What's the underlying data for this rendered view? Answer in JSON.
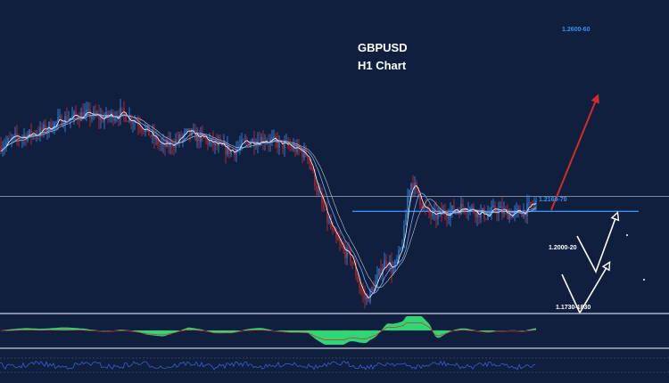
{
  "chart_data": {
    "type": "line",
    "title": "GBPUSD",
    "subtitle": "H1 Chart",
    "series": [
      {
        "price_path": [
          [
            0,
            1.2405
          ],
          [
            20,
            1.2435
          ],
          [
            45,
            1.2455
          ],
          [
            70,
            1.25
          ],
          [
            95,
            1.252
          ],
          [
            115,
            1.2505
          ],
          [
            135,
            1.2525
          ],
          [
            155,
            1.249
          ],
          [
            170,
            1.244
          ],
          [
            182,
            1.24
          ],
          [
            195,
            1.2415
          ],
          [
            210,
            1.245
          ],
          [
            228,
            1.243
          ],
          [
            245,
            1.24
          ],
          [
            260,
            1.2385
          ],
          [
            278,
            1.242
          ],
          [
            295,
            1.243
          ],
          [
            315,
            1.241
          ],
          [
            330,
            1.2395
          ],
          [
            345,
            1.237
          ],
          [
            355,
            1.225
          ],
          [
            365,
            1.215
          ],
          [
            375,
            1.207
          ],
          [
            385,
            1.202
          ],
          [
            392,
            1.2005
          ],
          [
            398,
            1.195
          ],
          [
            404,
            1.188
          ],
          [
            410,
            1.184
          ],
          [
            416,
            1.187
          ],
          [
            422,
            1.191
          ],
          [
            428,
            1.196
          ],
          [
            434,
            1.1995
          ],
          [
            440,
            1.1945
          ],
          [
            446,
            1.199
          ],
          [
            452,
            1.206
          ],
          [
            458,
            1.225
          ],
          [
            462,
            1.2275
          ],
          [
            468,
            1.223
          ],
          [
            476,
            1.217
          ],
          [
            486,
            1.2145
          ],
          [
            498,
            1.216
          ],
          [
            510,
            1.217
          ],
          [
            522,
            1.2185
          ],
          [
            534,
            1.2165
          ],
          [
            546,
            1.215
          ],
          [
            556,
            1.2175
          ],
          [
            566,
            1.216
          ],
          [
            576,
            1.2155
          ],
          [
            586,
            1.2165
          ],
          [
            594,
            1.218
          ],
          [
            601,
            1.2195
          ]
        ]
      }
    ],
    "levels": [
      {
        "label": "1.2600-60",
        "value": 1.263,
        "color": "#3b8ff0"
      },
      {
        "label": "1.2160-70",
        "value": 1.2165,
        "color": "#3b8ff0"
      },
      {
        "label": "1.2000-20",
        "value": 1.201,
        "color": "#ffffff"
      },
      {
        "label": "1.1730-1830",
        "value": 1.178,
        "color": "#ffffff"
      }
    ],
    "horizontal_line": 1.222,
    "support_line": 1.2165,
    "projection": [
      {
        "from": [
          618,
          1.217
        ],
        "to": [
          668,
          1.257
        ],
        "color": "#d62a2a"
      }
    ],
    "scenario_arrows": [
      {
        "points": [
          [
            647,
            1.2075
          ],
          [
            668,
            1.1945
          ],
          [
            690,
            1.214
          ]
        ]
      },
      {
        "points": [
          [
            630,
            1.1935
          ],
          [
            650,
            1.1795
          ],
          [
            680,
            1.196
          ]
        ]
      }
    ],
    "ylim": [
      1.175,
      1.28
    ],
    "xlim": [
      0,
      750
    ],
    "colors": {
      "background": "#0f1f3d",
      "candle_up": "#3b8ff0",
      "candle_down": "#d62a2a",
      "ma_fast": "#ffffff",
      "ma_slow": "#6fa8ff",
      "histogram": "#2fd676",
      "osc_line": "#3a5fd0",
      "separator": "#aab2c0"
    }
  }
}
